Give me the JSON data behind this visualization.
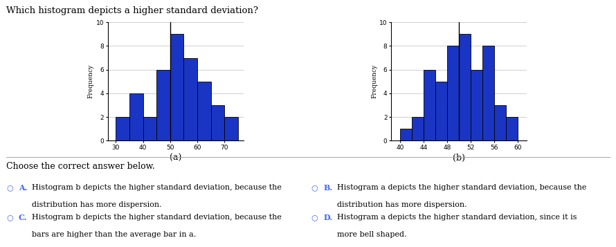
{
  "title": "Which histogram depicts a higher standard deviation?",
  "hist_a": {
    "heights": [
      2,
      4,
      2,
      6,
      9,
      7,
      5,
      3,
      2
    ],
    "bin_left": [
      30,
      35,
      40,
      45,
      50,
      55,
      60,
      65,
      70
    ],
    "bin_width": 5,
    "xticks": [
      30,
      40,
      50,
      60,
      70
    ],
    "yticks": [
      0,
      2,
      4,
      6,
      8,
      10
    ],
    "xlim": [
      27,
      77
    ],
    "ylim": [
      0,
      10
    ],
    "xlabel": "(a)",
    "ylabel": "Frequency",
    "mean_line": 50
  },
  "hist_b": {
    "heights": [
      1,
      2,
      6,
      5,
      8,
      9,
      6,
      8,
      3,
      2
    ],
    "bin_left": [
      40,
      42,
      44,
      46,
      48,
      50,
      52,
      54,
      56,
      58
    ],
    "bin_width": 2,
    "xticks": [
      40,
      44,
      48,
      52,
      56,
      60
    ],
    "yticks": [
      0,
      2,
      4,
      6,
      8,
      10
    ],
    "xlim": [
      38.5,
      61.5
    ],
    "ylim": [
      0,
      10
    ],
    "xlabel": "(b)",
    "ylabel": "Frequency",
    "mean_line": 50
  },
  "bar_color": "#1a35c4",
  "bar_edge_color": "#000000",
  "choose_text": "Choose the correct answer below.",
  "opt_A_line1": "Histogram b depicts the higher standard deviation, because the",
  "opt_A_line2": "distribution has more dispersion.",
  "opt_B_line1": "Histogram a depicts the higher standard deviation, because the",
  "opt_B_line2": "distribution has more dispersion.",
  "opt_C_line1": "Histogram b depicts the higher standard deviation, because the",
  "opt_C_line2": "bars are higher than the average bar in a.",
  "opt_D_line1": "Histogram a depicts the higher standard deviation, since it is",
  "opt_D_line2": "more bell shaped.",
  "circle_color": "#4466ff",
  "label_color": "#4466ff",
  "text_color": "#000000",
  "background_color": "#ffffff"
}
